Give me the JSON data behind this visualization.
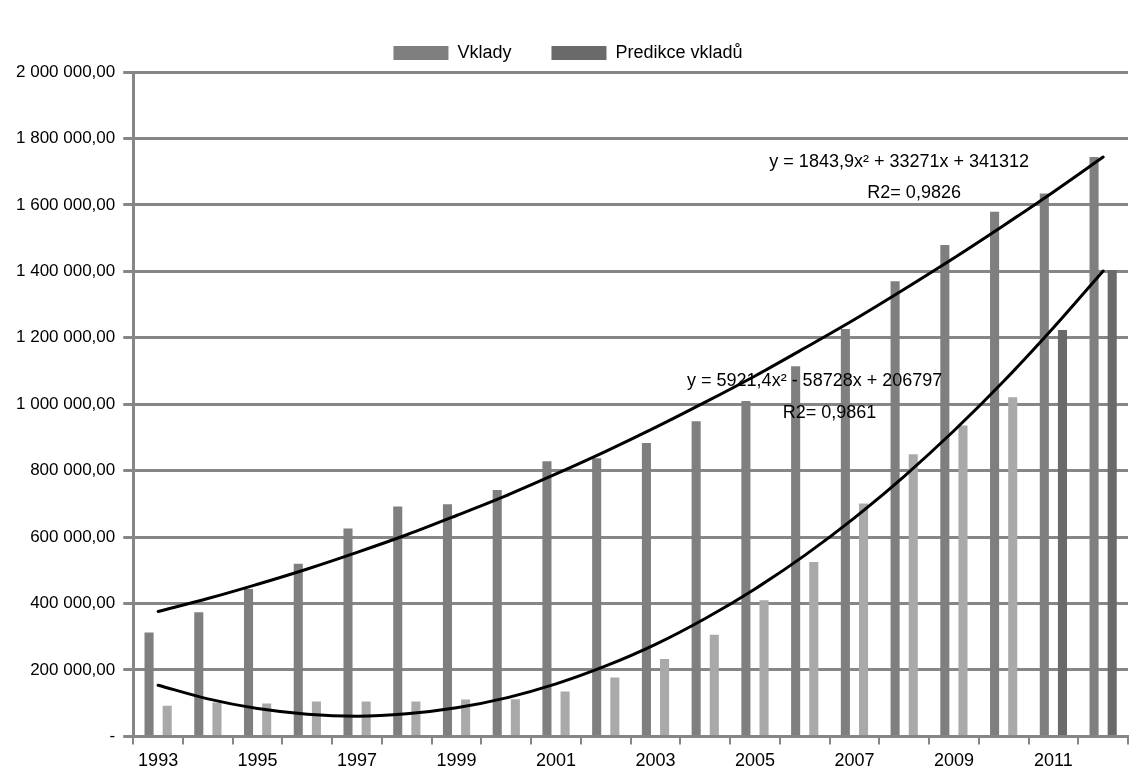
{
  "chart_data": {
    "type": "bar",
    "categories": [
      "1993",
      null,
      "1995",
      null,
      "1997",
      null,
      "1999",
      null,
      "2001",
      null,
      "2003",
      null,
      "2005",
      null,
      "2007",
      null,
      "2009",
      null,
      "2011",
      null
    ],
    "series": [
      {
        "name": "Vklady",
        "color": "#7f7f7f",
        "values": [
          313000,
          374000,
          444000,
          520000,
          626000,
          692000,
          699000,
          742000,
          828000,
          837000,
          883000,
          949000,
          1010000,
          1114000,
          1226000,
          1370000,
          1479000,
          1579000,
          1634000,
          1744000
        ]
      },
      {
        "color": "#a9a9a9",
        "values": [
          92000,
          102000,
          99000,
          105000,
          105000,
          105000,
          111000,
          112000,
          135000,
          177000,
          233000,
          306000,
          410000,
          525000,
          701000,
          849000,
          936000,
          1021000,
          null,
          null
        ]
      },
      {
        "name": "Predikce vkladů",
        "color": "#6a6a6a",
        "values": [
          null,
          null,
          null,
          null,
          null,
          null,
          null,
          null,
          null,
          null,
          null,
          null,
          null,
          null,
          null,
          null,
          null,
          null,
          1223000,
          1404000
        ]
      },
      {
        "type": "line",
        "color": "#000000",
        "values": [
          376000,
          415000,
          458000,
          504000,
          554000,
          607000,
          665000,
          725000,
          790000,
          858000,
          930000,
          1006000,
          1085000,
          1169000,
          1255000,
          1346000,
          1440000,
          1538000,
          1639000,
          1744000
        ]
      },
      {
        "type": "line",
        "color": "#000000",
        "values": [
          154000,
          113000,
          84000,
          67000,
          61000,
          68000,
          86000,
          116000,
          158000,
          212000,
          277000,
          355000,
          444000,
          545000,
          658000,
          783000,
          920000,
          1069000,
          1230000,
          1401000
        ]
      }
    ],
    "ylim": [
      0,
      2000000
    ],
    "yticks": [
      {
        "value": 0,
        "label": "-"
      },
      {
        "value": 200000,
        "label": "200 000,00"
      },
      {
        "value": 400000,
        "label": "400 000,00"
      },
      {
        "value": 600000,
        "label": "600 000,00"
      },
      {
        "value": 800000,
        "label": "800 000,00"
      },
      {
        "value": 1000000,
        "label": "1 000 000,00"
      },
      {
        "value": 1200000,
        "label": "1 200 000,00"
      },
      {
        "value": 1400000,
        "label": "1 400 000,00"
      },
      {
        "value": 1600000,
        "label": "1 600 000,00"
      },
      {
        "value": 1800000,
        "label": "1 800 000,00"
      },
      {
        "value": 2000000,
        "label": "2 000 000,00"
      }
    ],
    "grid": "y",
    "legend": "top",
    "annotations": [
      "y = 1843,9x² + 33271x + 341312",
      "R2= 0,9826",
      "y = 5921,4x² - 58728x + 206797",
      "R2= 0,9861"
    ]
  }
}
